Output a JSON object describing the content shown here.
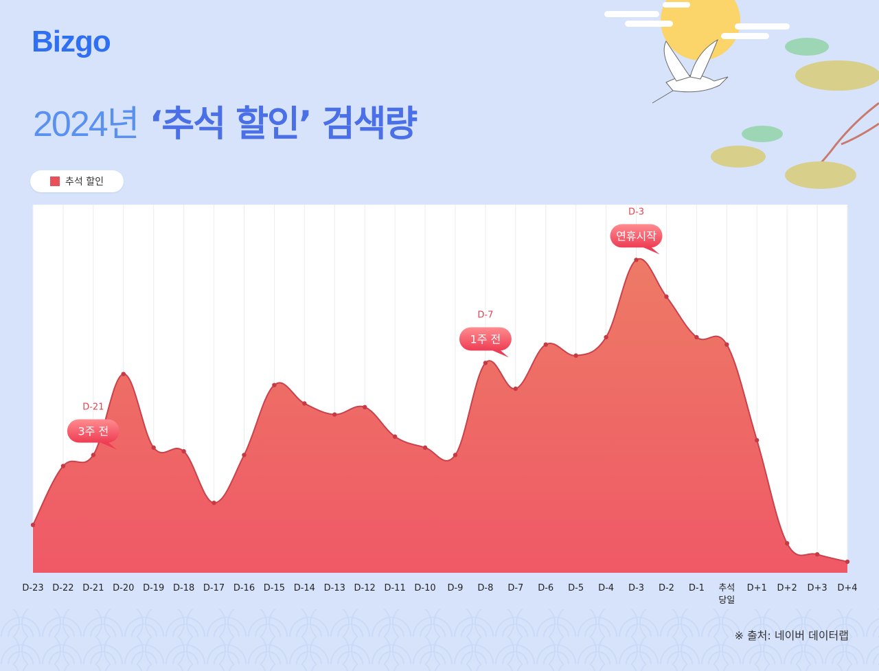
{
  "brand": {
    "logo": "Bizgo"
  },
  "title": {
    "year": "2024년",
    "rest": " ‘추석 할인’ 검색량"
  },
  "legend": {
    "label": "추석 할인",
    "color": "#e8505b"
  },
  "source": "※ 출처: 네이버 데이터랩",
  "chart_data": {
    "type": "area",
    "title": "2024년 ‘추석 할인’ 검색량",
    "categories": [
      "D-23",
      "D-22",
      "D-21",
      "D-20",
      "D-19",
      "D-18",
      "D-17",
      "D-16",
      "D-15",
      "D-14",
      "D-13",
      "D-12",
      "D-11",
      "D-10",
      "D-9",
      "D-8",
      "D-7",
      "D-6",
      "D-5",
      "D-4",
      "D-3",
      "D-2",
      "D-1",
      "추석 당일",
      "D+1",
      "D+2",
      "D+3",
      "D+4"
    ],
    "series": [
      {
        "name": "추석 할인",
        "color": "#e8505b",
        "values": [
          13,
          29,
          32,
          54,
          34,
          33,
          19,
          32,
          51,
          46,
          43,
          45,
          37,
          34,
          32,
          57,
          50,
          62,
          59,
          64,
          85,
          75,
          64,
          62,
          36,
          8,
          5,
          3
        ]
      }
    ],
    "ylim": [
      0,
      100
    ],
    "grid": "vertical",
    "legend_position": "top-left",
    "annotations": [
      {
        "category": "D-21",
        "top": "D-21",
        "label": "3주 전"
      },
      {
        "category": "D-8",
        "top": "D-7",
        "label": "1주 전"
      },
      {
        "category": "D-3",
        "top": "D-3",
        "label": "연휴시작"
      }
    ]
  }
}
